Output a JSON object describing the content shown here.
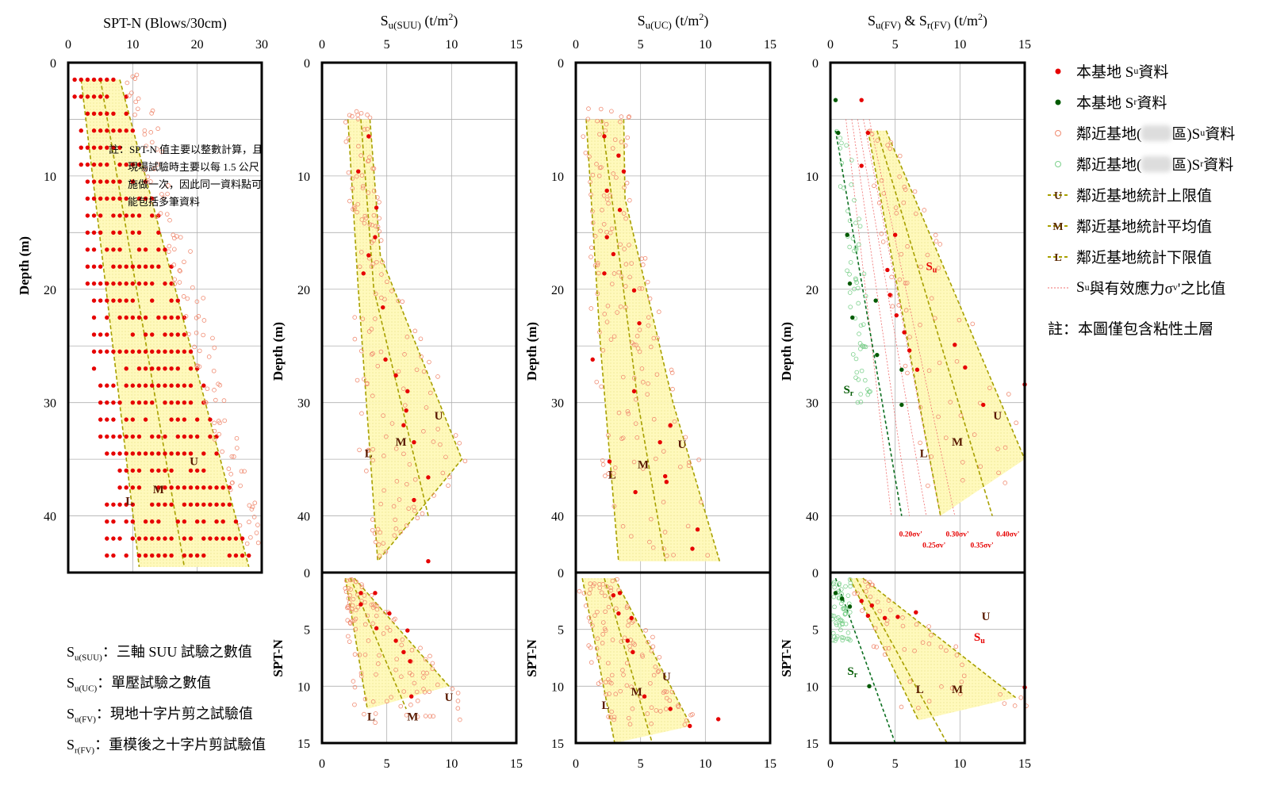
{
  "panels": [
    {
      "id": "spt",
      "title": "SPT-N (Blows/30cm)",
      "xlim": [
        0,
        30
      ],
      "xticks": [
        0,
        10,
        20,
        30
      ],
      "ylabel": "Depth (m)"
    },
    {
      "id": "suu",
      "title_main": "S",
      "title_sub": "u(SUU)",
      "title_unit": " (t/m",
      "title_sup": "2",
      "title_end": ")",
      "xlim": [
        0,
        15
      ],
      "xticks": [
        0,
        5,
        10,
        15
      ],
      "ylabel_top": "Depth (m)",
      "ylabel_bottom": "SPT-N"
    },
    {
      "id": "uc",
      "title_main": "S",
      "title_sub": "u(UC)",
      "title_unit": " (t/m",
      "title_sup": "2",
      "title_end": ")",
      "xlim": [
        0,
        15
      ],
      "xticks": [
        0,
        5,
        10,
        15
      ],
      "ylabel_top": "Depth (m)",
      "ylabel_bottom": "SPT-N"
    },
    {
      "id": "fv",
      "title_main": "S",
      "title_sub": "u(FV)",
      "title_mid": " & S",
      "title_sub2": "r(FV)",
      "title_unit": " (t/m",
      "title_sup": "2",
      "title_end": ")",
      "xlim": [
        0,
        15
      ],
      "xticks": [
        0,
        5,
        10,
        15
      ],
      "ylabel_top": "Depth (m)",
      "ylabel_bottom": "SPT-N"
    }
  ],
  "depth_ticks": [
    0,
    10,
    20,
    30,
    40
  ],
  "sptn_ticks": [
    0,
    5,
    10,
    15
  ],
  "note_spt": [
    "註：SPT-N 值主要以整數計算，且",
    "現場試驗時主要以每 1.5 公尺",
    "施做一次，因此同一資料點可",
    "能包括多筆資料"
  ],
  "legend": {
    "su_site": {
      "pre": "本基地 S",
      "sub": "u",
      "post": " 資料"
    },
    "sr_site": {
      "pre": "本基地 S",
      "sub": "r",
      "post": " 資料"
    },
    "su_near": {
      "pre": "鄰近基地(",
      "mid": "區)S",
      "sub": "u",
      "post": " 資料"
    },
    "sr_near": {
      "pre": "鄰近基地(",
      "mid": "區)S",
      "sub": "r",
      "post": " 資料"
    },
    "upper": "鄰近基地統計上限值",
    "mean": "鄰近基地統計平均值",
    "lower": "鄰近基地統計下限值",
    "ratio": {
      "pre": "S",
      "sub": "u",
      "mid": " 與有效應力σ",
      "sub2": "v",
      "post": "'之比值"
    },
    "note": "註：本圖僅包含粘性土層"
  },
  "definitions": [
    {
      "s": "S",
      "sub": "u(SUU)",
      "text": "：三軸 SUU 試驗之數值"
    },
    {
      "s": "S",
      "sub": "u(UC)",
      "text": "：單壓試驗之數值"
    },
    {
      "s": "S",
      "sub": "u(FV)",
      "text": "：現地十字片剪之試驗值"
    },
    {
      "s": "S",
      "sub": "r(FV)",
      "text": "：重模後之十字片剪試驗值"
    }
  ],
  "curve_labels": {
    "U": "U",
    "M": "M",
    "L": "L",
    "Su": "S",
    "Su_sub": "u",
    "Sr": "S",
    "Sr_sub": "r"
  },
  "ratio_labels": [
    "0.20σv'",
    "0.25σv'",
    "0.30σv'",
    "0.35σv'",
    "0.40σv'"
  ],
  "colors": {
    "site_su": "#e60000",
    "site_sr": "#005a00",
    "near_su": "#f08a70",
    "near_sr": "#7cd08c",
    "band_fill": "#fff9b8",
    "band_line": "#a8a000",
    "ratio_line": "#f06e6e",
    "sr_line": "#0a6e1e"
  },
  "chart_data": [
    {
      "type": "scatter",
      "title": "SPT-N (Blows/30cm)",
      "ylabel": "Depth (m)",
      "xlim": [
        0,
        30
      ],
      "ylim": [
        45,
        0
      ],
      "band": {
        "U": [
          [
            8,
            1.5
          ],
          [
            28,
            44.5
          ]
        ],
        "M": [
          [
            5,
            1.5
          ],
          [
            18,
            44.5
          ]
        ],
        "L": [
          [
            2,
            1.5
          ],
          [
            11,
            44.5
          ]
        ]
      },
      "label_positions": {
        "U": [
          19.5,
          35.5
        ],
        "M": [
          14,
          38
        ],
        "L": [
          9.5,
          39
        ]
      }
    },
    {
      "type": "scatter",
      "title": "Su(SUU) (t/m2)",
      "ylabel": "Depth (m)",
      "xlim": [
        0,
        15
      ],
      "ylim": [
        45,
        0
      ],
      "band_depth": {
        "U": [
          [
            3.7,
            5
          ],
          [
            4.5,
            17
          ],
          [
            10.8,
            35
          ],
          [
            4.3,
            44
          ]
        ],
        "M": [
          [
            3.0,
            5
          ],
          [
            4.0,
            20
          ],
          [
            8.2,
            40
          ]
        ],
        "L": [
          [
            2.0,
            5
          ],
          [
            2.8,
            20
          ],
          [
            4.3,
            44
          ]
        ]
      },
      "band_spt": {
        "U": [
          [
            2.5,
            0.5
          ],
          [
            9.8,
            10
          ]
        ],
        "M": [
          [
            2.2,
            0.5
          ],
          [
            6.5,
            12
          ]
        ],
        "L": [
          [
            1.8,
            0.5
          ],
          [
            3.5,
            12
          ]
        ]
      },
      "site_points_depth": [
        [
          3.6,
          6.5
        ],
        [
          2.8,
          9.6
        ],
        [
          4.2,
          12.8
        ],
        [
          4.1,
          15.4
        ],
        [
          3.2,
          18.6
        ],
        [
          4.7,
          21.6
        ],
        [
          4.9,
          26.2
        ],
        [
          5.7,
          27.6
        ],
        [
          6.6,
          29.0
        ],
        [
          6.3,
          32.0
        ],
        [
          6.5,
          30.7
        ],
        [
          7.1,
          33.5
        ],
        [
          8.2,
          36.6
        ],
        [
          7.1,
          38.6
        ],
        [
          8.2,
          44.0
        ],
        [
          3.6,
          17.0
        ]
      ],
      "site_points_spt": [
        [
          3.0,
          1.8
        ],
        [
          4.1,
          1.8
        ],
        [
          5.2,
          3.6
        ],
        [
          4.2,
          4.9
        ],
        [
          5.7,
          6.0
        ],
        [
          6.6,
          5.1
        ],
        [
          6.3,
          7.0
        ],
        [
          6.8,
          7.8
        ],
        [
          6.9,
          10.9
        ],
        [
          3.0,
          2.8
        ]
      ]
    },
    {
      "type": "scatter",
      "title": "Su(UC) (t/m2)",
      "ylabel": "Depth (m)",
      "xlim": [
        0,
        15
      ],
      "ylim": [
        45,
        0
      ],
      "band_depth": {
        "U": [
          [
            3.7,
            5
          ],
          [
            3.8,
            12
          ],
          [
            7.5,
            30
          ],
          [
            11.1,
            44
          ]
        ],
        "M": [
          [
            2.0,
            5
          ],
          [
            4.8,
            30
          ],
          [
            6.9,
            44
          ]
        ],
        "L": [
          [
            0.8,
            5
          ],
          [
            1.9,
            25
          ],
          [
            3.3,
            44
          ]
        ]
      },
      "band_spt": {
        "U": [
          [
            3.0,
            0.5
          ],
          [
            8.9,
            13.5
          ]
        ],
        "M": [
          [
            2.2,
            0.5
          ],
          [
            5.9,
            15
          ]
        ],
        "L": [
          [
            0.5,
            0.5
          ],
          [
            3.0,
            15
          ]
        ]
      },
      "site_points_depth": [
        [
          2.2,
          6.5
        ],
        [
          3.3,
          8.2
        ],
        [
          2.4,
          11.3
        ],
        [
          3.4,
          13.0
        ],
        [
          3.7,
          9.6
        ],
        [
          2.4,
          15.4
        ],
        [
          2.9,
          16.9
        ],
        [
          2.2,
          18.6
        ],
        [
          4.5,
          20.1
        ],
        [
          1.3,
          26.2
        ],
        [
          4.9,
          23.0
        ],
        [
          4.5,
          29.0
        ],
        [
          7.3,
          32.0
        ],
        [
          6.5,
          33.5
        ],
        [
          4.6,
          37.9
        ],
        [
          6.9,
          36.5
        ],
        [
          9.4,
          41.2
        ],
        [
          9.0,
          42.9
        ],
        [
          7.0,
          37.0
        ],
        [
          2.6,
          35.2
        ]
      ],
      "site_points_spt": [
        [
          3.4,
          1.8
        ],
        [
          2.9,
          2.0
        ],
        [
          4.3,
          4.0
        ],
        [
          3.3,
          3.6
        ],
        [
          4.0,
          6.0
        ],
        [
          4.4,
          7.0
        ],
        [
          5.3,
          10.9
        ],
        [
          7.3,
          12.0
        ],
        [
          8.8,
          13.5
        ],
        [
          11.0,
          12.9
        ]
      ]
    },
    {
      "type": "scatter",
      "title": "Su(FV) & Sr(FV) (t/m2)",
      "ylabel": "Depth (m)",
      "xlim": [
        0,
        15
      ],
      "ylim": [
        45,
        0
      ],
      "band_depth": {
        "U": [
          [
            4.3,
            6
          ],
          [
            15,
            35
          ]
        ],
        "M": [
          [
            3.6,
            6
          ],
          [
            12.5,
            40
          ]
        ],
        "L": [
          [
            2.9,
            6
          ],
          [
            8.5,
            40
          ]
        ]
      },
      "band_spt": {
        "U": [
          [
            2.5,
            0.5
          ],
          [
            14.3,
            11
          ]
        ],
        "M": [
          [
            2.0,
            0.5
          ],
          [
            9.0,
            15
          ]
        ],
        "L": [
          [
            1.5,
            0.5
          ],
          [
            6.8,
            13
          ]
        ]
      },
      "sr_line_depth": [
        [
          0.4,
          6
        ],
        [
          5.5,
          40
        ]
      ],
      "sr_line_spt": [
        [
          0.4,
          0.5
        ],
        [
          5.0,
          15
        ]
      ],
      "ratio_lines": [
        0.2,
        0.25,
        0.3,
        0.35,
        0.4
      ],
      "site_su_points_depth": [
        [
          2.4,
          3.3
        ],
        [
          2.9,
          6.2
        ],
        [
          2.4,
          9.1
        ],
        [
          5.0,
          15.2
        ],
        [
          4.4,
          18.3
        ],
        [
          4.6,
          20.5
        ],
        [
          5.1,
          22.3
        ],
        [
          5.7,
          23.8
        ],
        [
          6.1,
          25.4
        ],
        [
          6.7,
          27.1
        ],
        [
          9.6,
          24.9
        ],
        [
          11.8,
          30.2
        ],
        [
          15.0,
          28.4
        ],
        [
          10.4,
          26.9
        ]
      ],
      "site_sr_points_depth": [
        [
          0.4,
          3.3
        ],
        [
          1.3,
          15.2
        ],
        [
          1.5,
          19.5
        ],
        [
          1.7,
          22.5
        ],
        [
          3.6,
          25.8
        ],
        [
          5.5,
          27.1
        ],
        [
          5.5,
          30.2
        ],
        [
          3.5,
          21.0
        ],
        [
          0.6,
          6.2
        ]
      ],
      "site_su_points_spt": [
        [
          2.4,
          2.5
        ],
        [
          3.2,
          2.9
        ],
        [
          2.9,
          3.8
        ],
        [
          4.2,
          4.0
        ],
        [
          5.2,
          3.9
        ],
        [
          6.6,
          3.5
        ],
        [
          15.0,
          10.1
        ]
      ],
      "site_sr_points_spt": [
        [
          0.4,
          1.8
        ],
        [
          0.9,
          2.3
        ],
        [
          1.5,
          3.0
        ],
        [
          3.0,
          10.0
        ]
      ]
    }
  ]
}
